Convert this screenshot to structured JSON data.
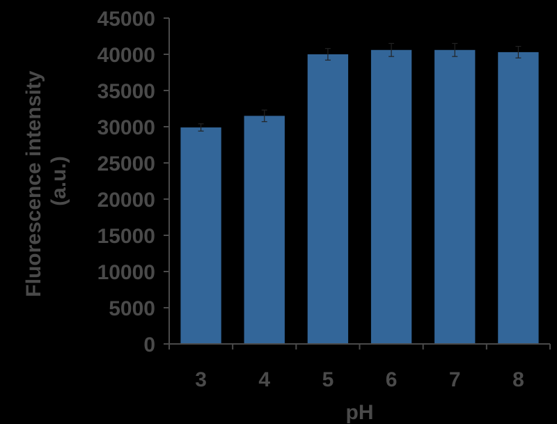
{
  "chart_data": {
    "type": "bar",
    "title": "",
    "xlabel": "pH",
    "ylabel_line1": "Fluorescence intensity",
    "ylabel_line2": "(a.u.)",
    "categories": [
      "3",
      "4",
      "5",
      "6",
      "7",
      "8"
    ],
    "values": [
      29900,
      31500,
      40000,
      40600,
      40600,
      40300
    ],
    "errors": [
      500,
      800,
      800,
      900,
      900,
      800
    ],
    "ylim": [
      0,
      45000
    ],
    "yticks": [
      "0",
      "5000",
      "10000",
      "15000",
      "20000",
      "25000",
      "30000",
      "35000",
      "40000",
      "45000"
    ],
    "grid": false,
    "legend": "none",
    "bar_color": "#336699",
    "axis_color": "#4a4a4a",
    "background": "#000000"
  }
}
